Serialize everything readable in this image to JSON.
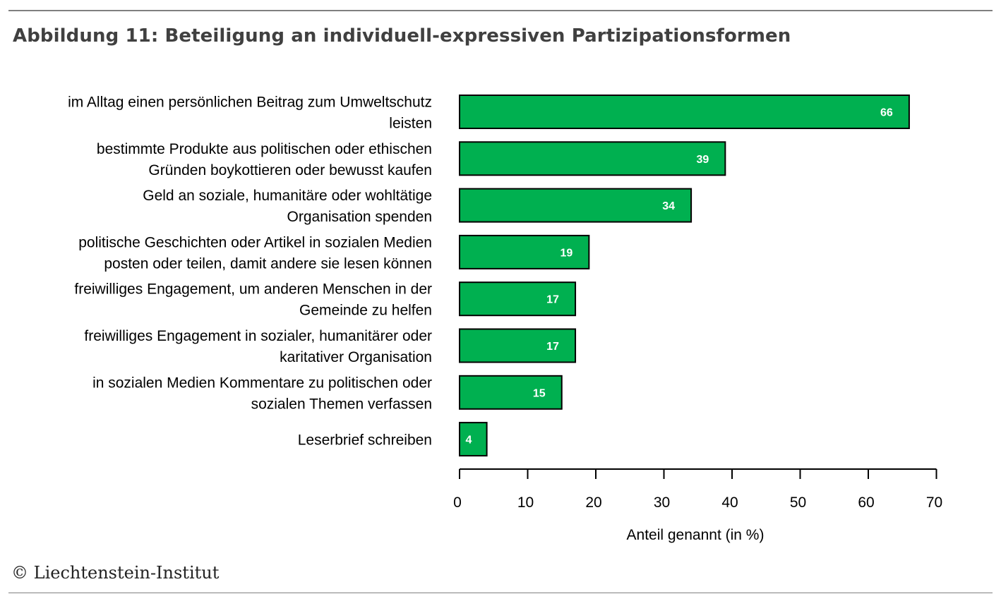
{
  "figure": {
    "title": "Abbildung 11: Beteiligung an individuell-expressiven Partizipationsformen",
    "copyright": "© Liechtenstein-Institut"
  },
  "colors": {
    "bar_fill": "#00b050",
    "bar_stroke": "#000000",
    "label_text": "#ffffff",
    "axis": "#000000"
  },
  "chart_data": {
    "type": "bar",
    "orientation": "horizontal",
    "categories": [
      [
        "im Alltag einen persönlichen Beitrag zum Umweltschutz",
        "leisten"
      ],
      [
        "bestimmte Produkte aus politischen oder ethischen",
        "Gründen boykottieren oder bewusst kaufen"
      ],
      [
        "Geld an soziale, humanitäre oder wohltätige",
        "Organisation spenden"
      ],
      [
        "politische Geschichten oder Artikel in sozialen Medien",
        "posten oder teilen, damit andere sie lesen können"
      ],
      [
        "freiwilliges Engagement, um anderen Menschen in der",
        "Gemeinde zu helfen"
      ],
      [
        "freiwilliges Engagement in sozialer, humanitärer oder",
        "karitativer Organisation"
      ],
      [
        "in sozialen Medien Kommentare zu politischen oder",
        "sozialen Themen verfassen"
      ],
      [
        "Leserbrief schreiben"
      ]
    ],
    "values": [
      66,
      39,
      34,
      19,
      17,
      17,
      15,
      4
    ],
    "xlabel": "Anteil genannt (in %)",
    "xlim": [
      0,
      70
    ],
    "xticks": [
      0,
      10,
      20,
      30,
      40,
      50,
      60,
      70
    ],
    "grid": false,
    "legend": "none"
  }
}
